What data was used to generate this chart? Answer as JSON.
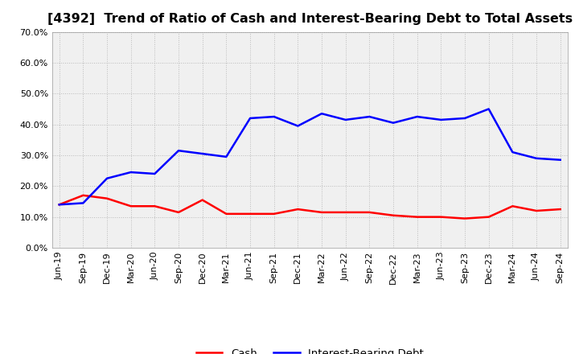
{
  "title": "[4392]  Trend of Ratio of Cash and Interest-Bearing Debt to Total Assets",
  "x_labels": [
    "Jun-19",
    "Sep-19",
    "Dec-19",
    "Mar-20",
    "Jun-20",
    "Sep-20",
    "Dec-20",
    "Mar-21",
    "Jun-21",
    "Sep-21",
    "Dec-21",
    "Mar-22",
    "Jun-22",
    "Sep-22",
    "Dec-22",
    "Mar-23",
    "Jun-23",
    "Sep-23",
    "Dec-23",
    "Mar-24",
    "Jun-24",
    "Sep-24"
  ],
  "cash": [
    14.0,
    17.0,
    16.0,
    13.5,
    13.5,
    11.5,
    15.5,
    11.0,
    11.0,
    11.0,
    12.5,
    11.5,
    11.5,
    11.5,
    10.5,
    10.0,
    10.0,
    9.5,
    10.0,
    13.5,
    12.0,
    12.5
  ],
  "ibd": [
    14.0,
    14.5,
    22.5,
    24.5,
    24.0,
    31.5,
    30.5,
    29.5,
    42.0,
    42.5,
    39.5,
    43.5,
    41.5,
    42.5,
    40.5,
    42.5,
    41.5,
    42.0,
    45.0,
    31.0,
    29.0,
    28.5
  ],
  "cash_color": "#ff0000",
  "ibd_color": "#0000ff",
  "ylim": [
    0.0,
    70.0
  ],
  "yticks": [
    0.0,
    10.0,
    20.0,
    30.0,
    40.0,
    50.0,
    60.0,
    70.0
  ],
  "bg_color": "#ffffff",
  "plot_bg_color": "#f0f0f0",
  "grid_color": "#bbbbbb",
  "title_fontsize": 11.5,
  "tick_fontsize": 8,
  "legend_fontsize": 9.5,
  "line_width": 1.8
}
